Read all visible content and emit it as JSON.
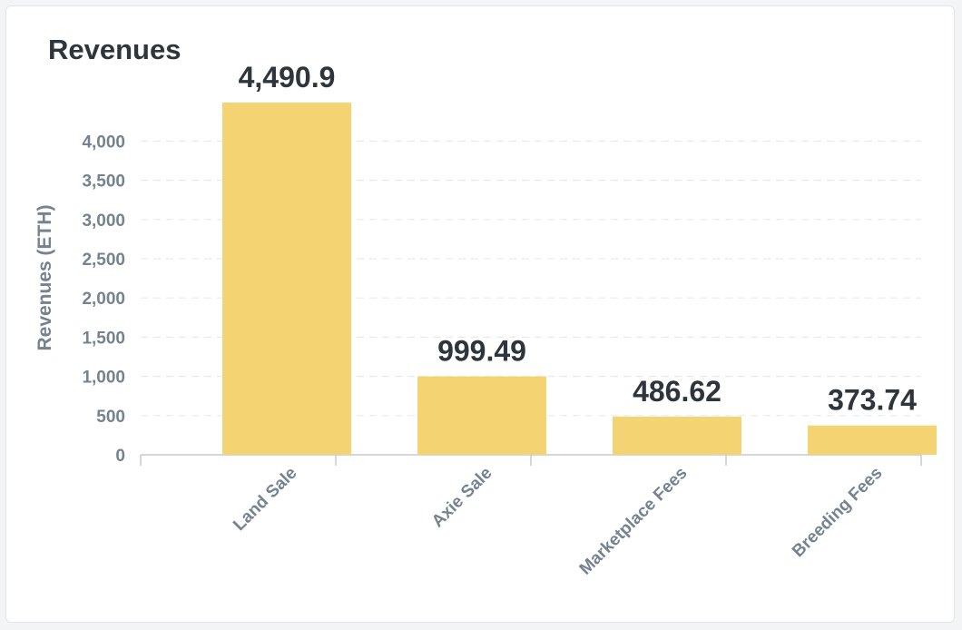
{
  "chart_data": {
    "type": "bar",
    "title": "Revenues",
    "xlabel": "",
    "ylabel": "Revenues (ETH)",
    "categories": [
      "Land Sale",
      "Axie Sale",
      "Marketplace Fees",
      "Breeding Fees"
    ],
    "values": [
      4490.9,
      999.49,
      486.62,
      373.74
    ],
    "value_labels": [
      "4,490.9",
      "999.49",
      "486.62",
      "373.74"
    ],
    "yticks": [
      0,
      500,
      1000,
      1500,
      2000,
      2500,
      3000,
      3500,
      4000
    ],
    "ytick_labels": [
      "0",
      "500",
      "1,000",
      "1,500",
      "2,000",
      "2,500",
      "3,000",
      "3,500",
      "4,000"
    ],
    "ylim": [
      0,
      4500
    ],
    "grid": true,
    "legend": "none",
    "colors": {
      "bar": "#f3d372",
      "text": "#2e353b",
      "axis_text": "#74838f",
      "grid": "#e8eaed",
      "axis_line": "#c5cad0"
    }
  }
}
